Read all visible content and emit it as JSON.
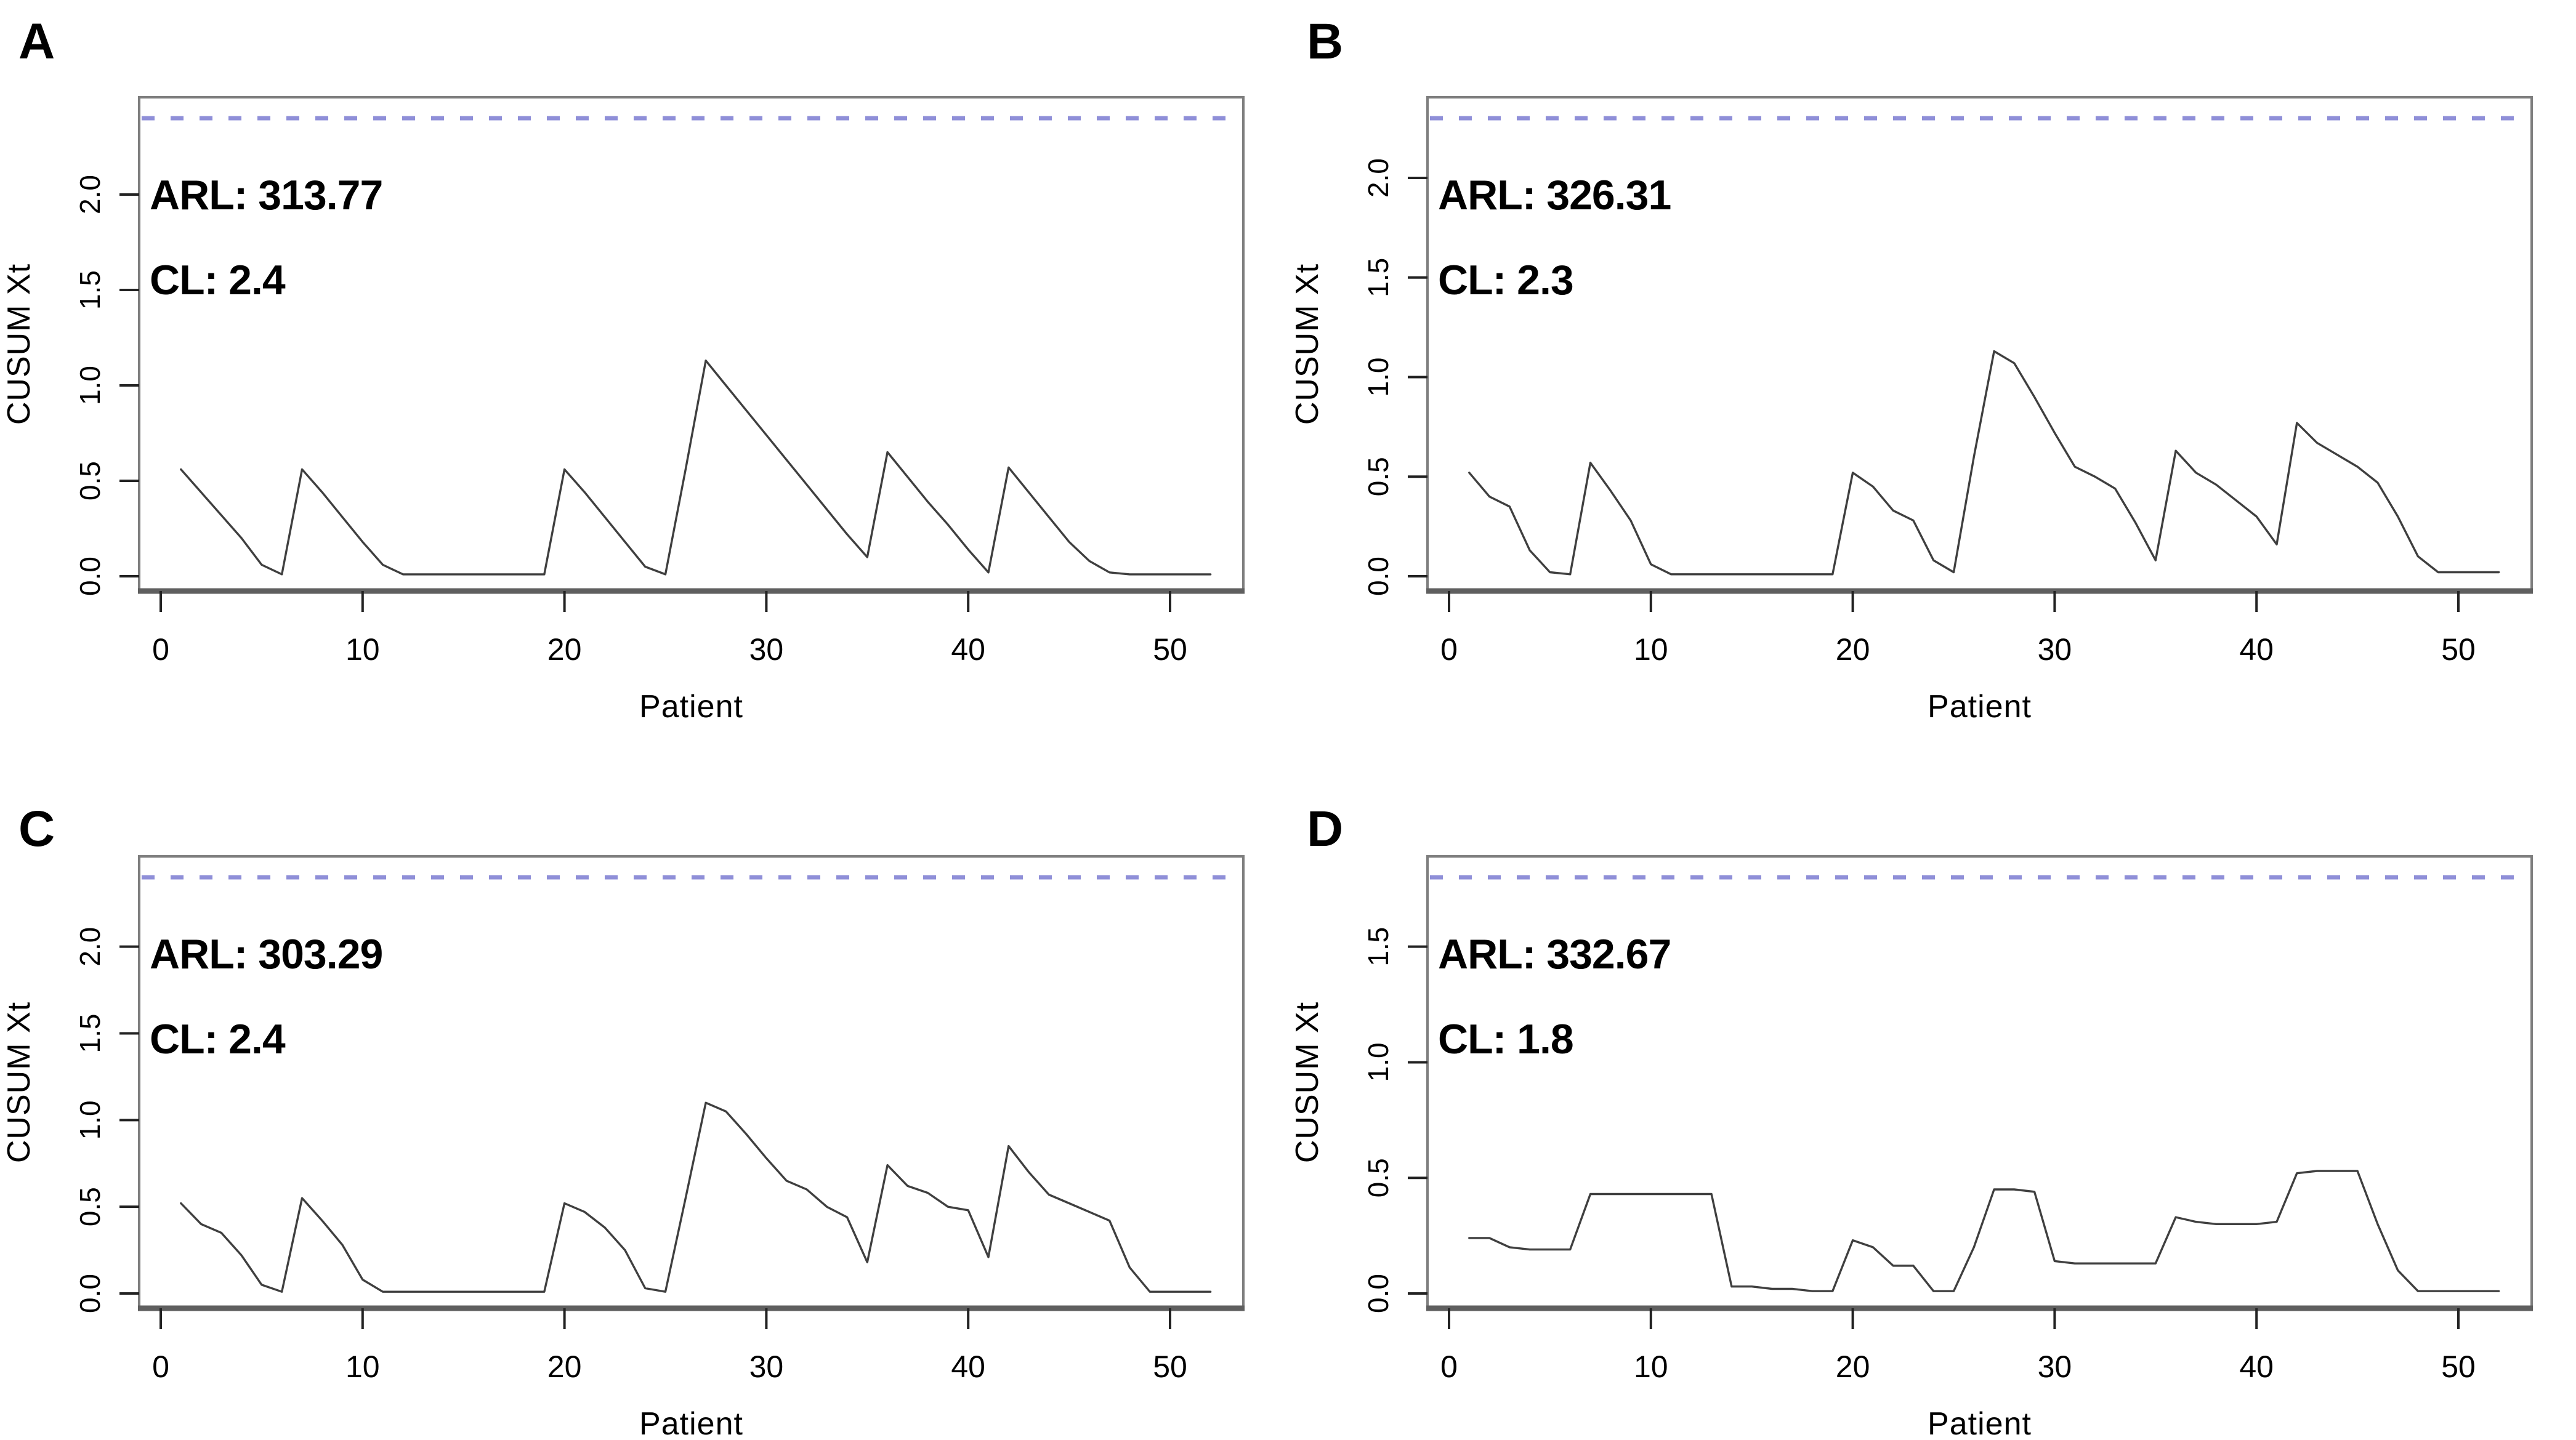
{
  "figure": {
    "background": "#ffffff",
    "series_color": "#3f3f3f",
    "control_line_color": "#8f8fd8",
    "box_color": "#7e7e7e",
    "axis_band_color": "#5f5f5f",
    "tick_color": "#222222",
    "text_color": "#000000"
  },
  "chart_data": [
    {
      "type": "line",
      "panel_label": "A",
      "annotations": [
        "ARL: 313.77",
        "CL: 2.4"
      ],
      "arl": 313.77,
      "cl": 2.4,
      "xlabel": "Patient",
      "ylabel": "CUSUM Xt",
      "x_ticks": [
        0,
        10,
        20,
        30,
        40,
        50
      ],
      "y_ticks": [
        0.0,
        0.5,
        1.0,
        1.5,
        2.0
      ],
      "xlim": [
        0,
        53
      ],
      "ylim": [
        0,
        2.5
      ],
      "x_start": 1,
      "control_line_style": "dashed",
      "values": [
        0.56,
        0.44,
        0.32,
        0.2,
        0.06,
        0.01,
        0.56,
        0.44,
        0.31,
        0.18,
        0.06,
        0.01,
        0.01,
        0.01,
        0.01,
        0.01,
        0.01,
        0.01,
        0.01,
        0.56,
        0.44,
        0.31,
        0.18,
        0.05,
        0.01,
        0.56,
        1.13,
        1.0,
        0.87,
        0.74,
        0.61,
        0.48,
        0.35,
        0.22,
        0.1,
        0.65,
        0.52,
        0.39,
        0.27,
        0.14,
        0.02,
        0.57,
        0.44,
        0.31,
        0.18,
        0.08,
        0.02,
        0.01,
        0.01,
        0.01,
        0.01,
        0.01
      ]
    },
    {
      "type": "line",
      "panel_label": "B",
      "annotations": [
        "ARL: 326.31",
        "CL: 2.3"
      ],
      "arl": 326.31,
      "cl": 2.3,
      "xlabel": "Patient",
      "ylabel": "CUSUM Xt",
      "x_ticks": [
        0,
        10,
        20,
        30,
        40,
        50
      ],
      "y_ticks": [
        0.0,
        0.5,
        1.0,
        1.5,
        2.0
      ],
      "xlim": [
        0,
        53
      ],
      "ylim": [
        0,
        2.4
      ],
      "x_start": 1,
      "control_line_style": "dashed",
      "values": [
        0.52,
        0.4,
        0.35,
        0.13,
        0.02,
        0.01,
        0.57,
        0.43,
        0.28,
        0.06,
        0.01,
        0.01,
        0.01,
        0.01,
        0.01,
        0.01,
        0.01,
        0.01,
        0.01,
        0.52,
        0.45,
        0.33,
        0.28,
        0.08,
        0.02,
        0.6,
        1.13,
        1.07,
        0.9,
        0.72,
        0.55,
        0.5,
        0.44,
        0.27,
        0.08,
        0.63,
        0.52,
        0.46,
        0.38,
        0.3,
        0.16,
        0.77,
        0.67,
        0.61,
        0.55,
        0.47,
        0.3,
        0.1,
        0.02,
        0.02,
        0.02,
        0.02
      ]
    },
    {
      "type": "line",
      "panel_label": "C",
      "annotations": [
        "ARL: 303.29",
        "CL: 2.4"
      ],
      "arl": 303.29,
      "cl": 2.4,
      "xlabel": "Patient",
      "ylabel": "CUSUM Xt",
      "x_ticks": [
        0,
        10,
        20,
        30,
        40,
        50
      ],
      "y_ticks": [
        0.0,
        0.5,
        1.0,
        1.5,
        2.0
      ],
      "xlim": [
        0,
        53
      ],
      "ylim": [
        0,
        2.5
      ],
      "x_start": 1,
      "control_line_style": "dashed",
      "values": [
        0.52,
        0.4,
        0.35,
        0.22,
        0.05,
        0.01,
        0.55,
        0.42,
        0.28,
        0.08,
        0.01,
        0.01,
        0.01,
        0.01,
        0.01,
        0.01,
        0.01,
        0.01,
        0.01,
        0.52,
        0.47,
        0.38,
        0.25,
        0.03,
        0.01,
        0.55,
        1.1,
        1.05,
        0.92,
        0.78,
        0.65,
        0.6,
        0.5,
        0.44,
        0.18,
        0.74,
        0.62,
        0.58,
        0.5,
        0.48,
        0.21,
        0.85,
        0.7,
        0.57,
        0.52,
        0.47,
        0.42,
        0.15,
        0.01,
        0.01,
        0.01,
        0.01
      ]
    },
    {
      "type": "line",
      "panel_label": "D",
      "annotations": [
        "ARL: 332.67",
        "CL: 1.8"
      ],
      "arl": 332.67,
      "cl": 1.8,
      "xlabel": "Patient",
      "ylabel": "CUSUM Xt",
      "x_ticks": [
        0,
        10,
        20,
        30,
        40,
        50
      ],
      "y_ticks": [
        0.0,
        0.5,
        1.0,
        1.5
      ],
      "xlim": [
        0,
        53
      ],
      "ylim": [
        0,
        1.85
      ],
      "x_start": 1,
      "control_line_style": "dashed",
      "values": [
        0.24,
        0.24,
        0.2,
        0.19,
        0.19,
        0.19,
        0.43,
        0.43,
        0.43,
        0.43,
        0.43,
        0.43,
        0.43,
        0.03,
        0.03,
        0.02,
        0.02,
        0.01,
        0.01,
        0.23,
        0.2,
        0.12,
        0.12,
        0.01,
        0.01,
        0.2,
        0.45,
        0.45,
        0.44,
        0.14,
        0.13,
        0.13,
        0.13,
        0.13,
        0.13,
        0.33,
        0.31,
        0.3,
        0.3,
        0.3,
        0.31,
        0.52,
        0.53,
        0.53,
        0.53,
        0.3,
        0.1,
        0.01,
        0.01,
        0.01,
        0.01,
        0.01
      ]
    }
  ]
}
